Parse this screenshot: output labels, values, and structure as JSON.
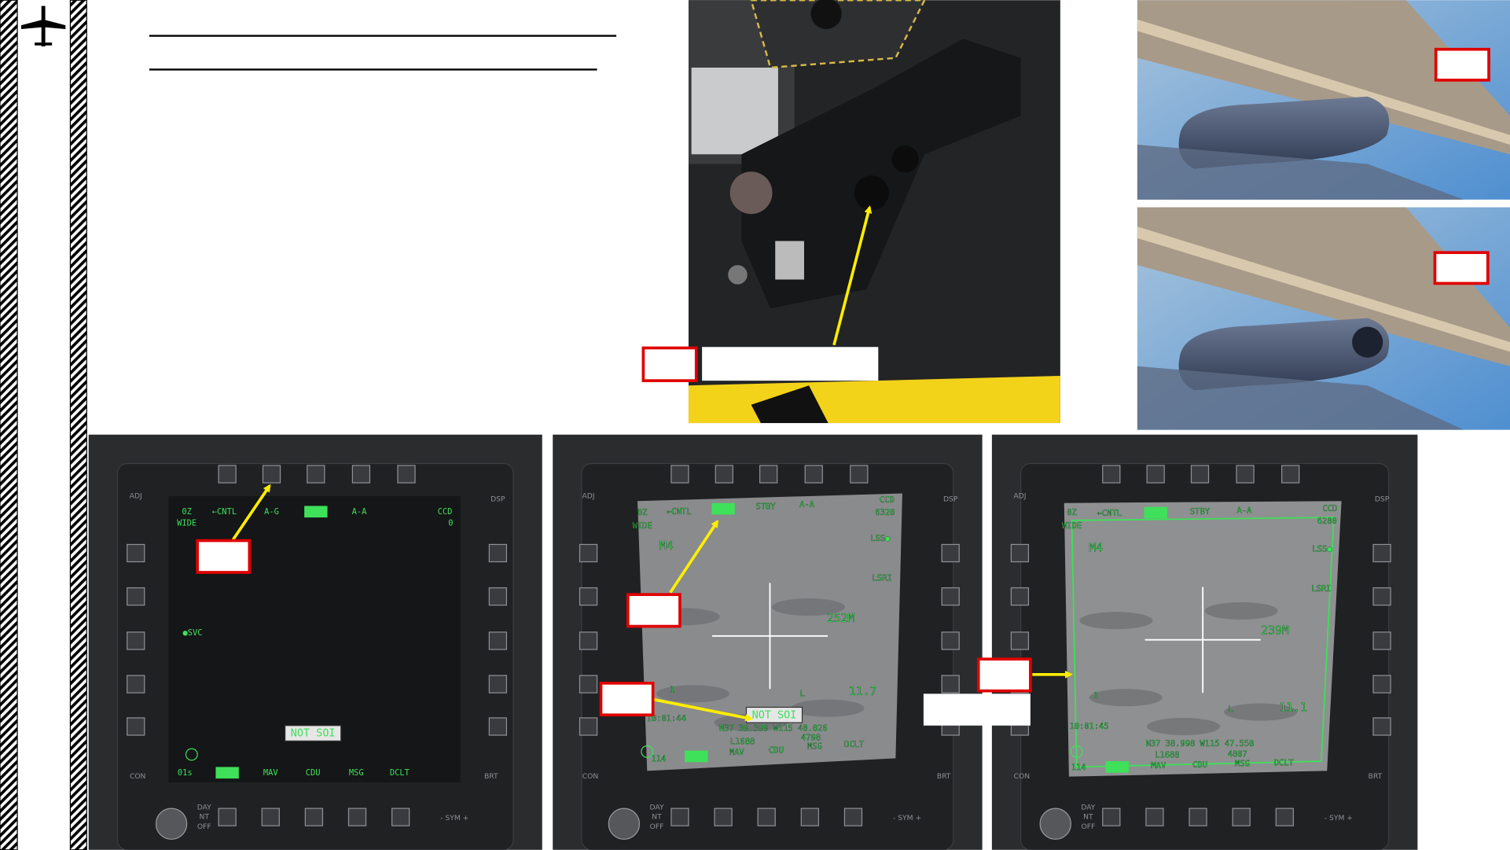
{
  "mfcds": [
    {
      "labels": [
        "0Z",
        "WIDE",
        "←CNTL",
        "A-G",
        "STBY",
        "A-A",
        "CCD",
        "0",
        "●SVC",
        "NOT SOI",
        "01s",
        "TGP",
        "MAV",
        "CDU",
        "MSG",
        "DCLT"
      ]
    },
    {
      "labels": [
        "0Z",
        "WIDE",
        "←CNTL",
        "A-G",
        "STBY",
        "A-A",
        "CCD",
        "6320",
        "M4",
        "LSS●",
        "LSRI",
        "252M",
        "1",
        "L",
        "11.7",
        "10:01:44",
        "NOT SOI",
        "N37 39.399 W115 48.026",
        "L1688",
        "4798",
        "114",
        "TGP",
        "MAV",
        "CDU",
        "MSG",
        "DCLT"
      ]
    },
    {
      "labels": [
        "0Z",
        "WIDE",
        "←CNTL",
        "A-G",
        "STBY",
        "A-A",
        "CCD",
        "6280",
        "M4",
        "LSS●",
        "LSRI",
        "239M",
        "1",
        "L",
        "11.1",
        "10:01:45",
        "N37 38.998 W115 47.550",
        "L1688",
        "4807",
        "114",
        "TGP",
        "MAV",
        "CDU",
        "MSG",
        "DCLT"
      ]
    }
  ],
  "bezel": {
    "adj": "ADJ",
    "dsp": "DSP",
    "con": "CON",
    "brt": "BRT",
    "day": "DAY",
    "nt": "NT",
    "off": "OFF",
    "sym": "- SYM +"
  }
}
